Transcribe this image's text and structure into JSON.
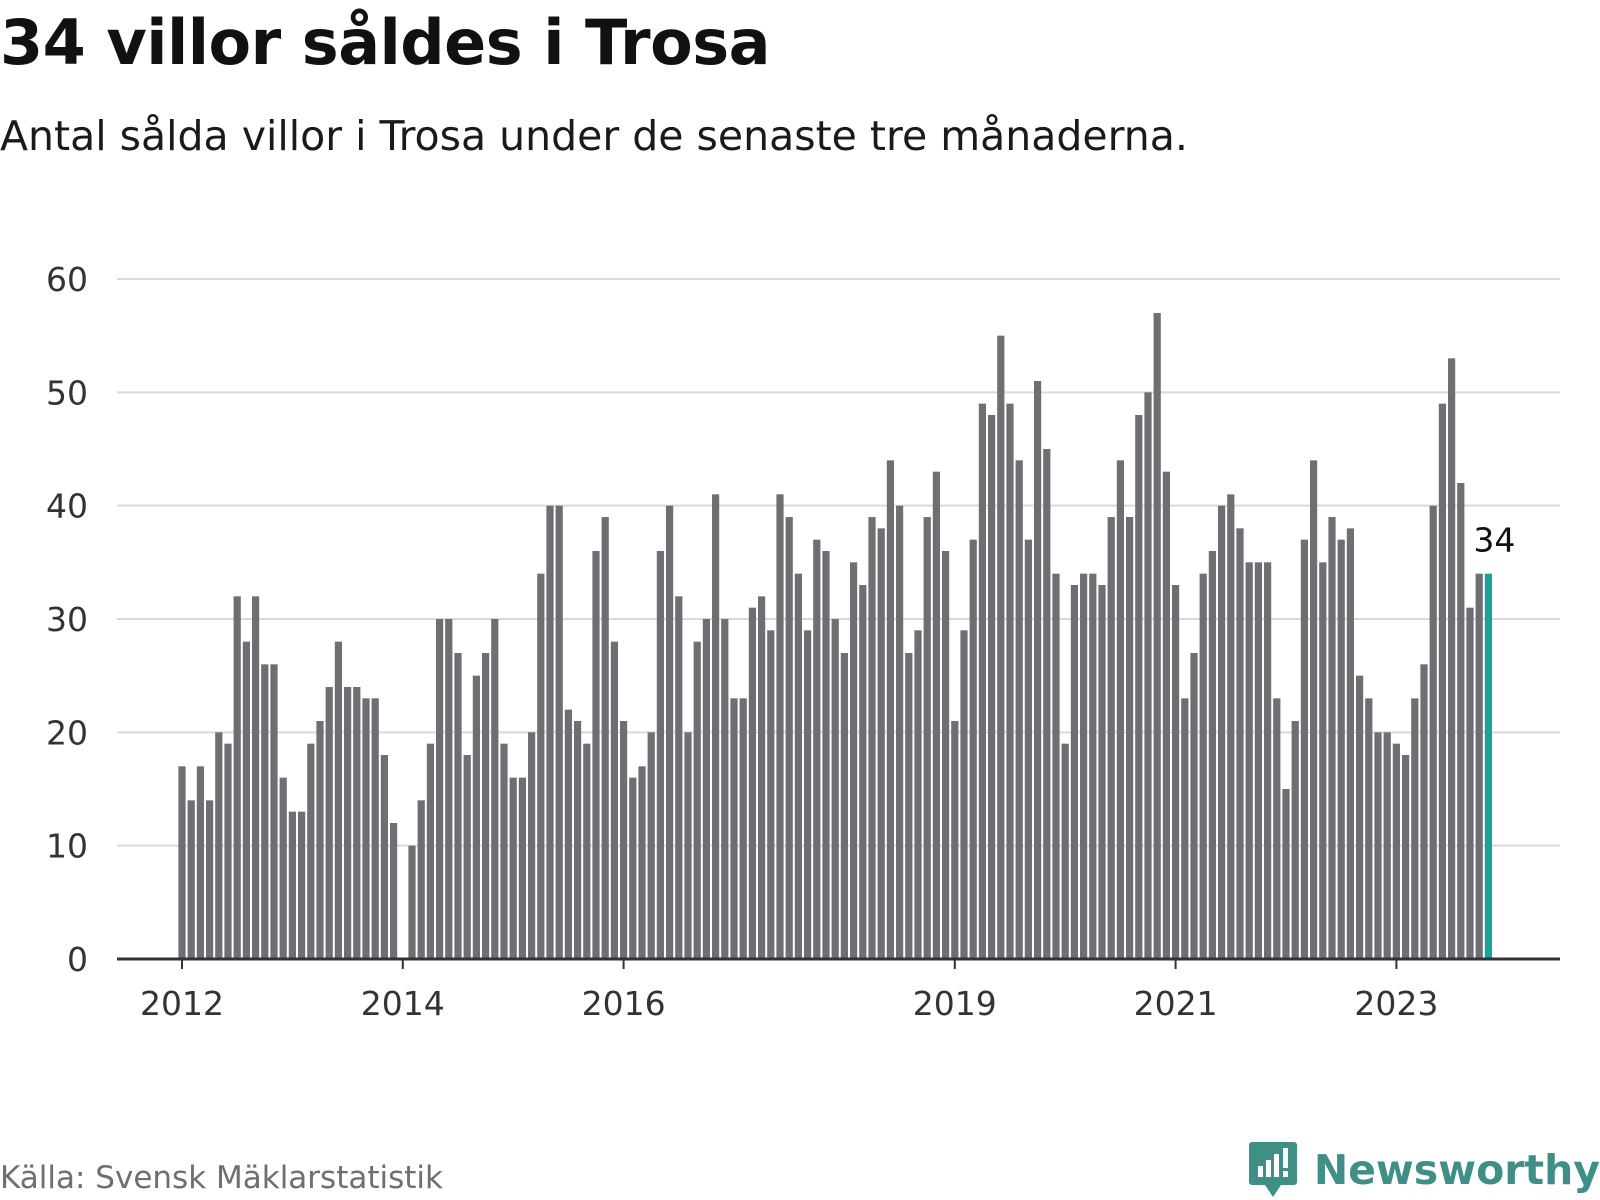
{
  "title": "34 villor såldes i Trosa",
  "subtitle": "Antal sålda villor i Trosa under de senaste tre månaderna.",
  "source": "Källa: Svensk Mäklarstatistik",
  "brand": "Newsworthy",
  "colors": {
    "bar": "#6e6e73",
    "highlight": "#17a59a",
    "grid": "#d9d9d9",
    "axis": "#333333",
    "brand": "#3f8f86"
  },
  "chart_data": {
    "type": "bar",
    "title": "34 villor såldes i Trosa",
    "xlabel": "",
    "ylabel": "",
    "ylim": [
      0,
      60
    ],
    "yticks": [
      0,
      10,
      20,
      30,
      40,
      50,
      60
    ],
    "xticks": [
      "2012",
      "2014",
      "2016",
      "2019",
      "2021",
      "2023"
    ],
    "xtick_index": [
      0,
      24,
      48,
      84,
      108,
      132
    ],
    "grid": true,
    "highlight_last": true,
    "last_value_label": "34",
    "values": [
      17,
      14,
      17,
      14,
      20,
      19,
      32,
      28,
      32,
      26,
      26,
      16,
      13,
      13,
      19,
      21,
      24,
      28,
      24,
      24,
      23,
      23,
      18,
      12,
      null,
      10,
      14,
      19,
      30,
      30,
      27,
      18,
      25,
      27,
      30,
      19,
      16,
      16,
      20,
      34,
      40,
      40,
      22,
      21,
      19,
      36,
      39,
      28,
      21,
      16,
      17,
      20,
      36,
      40,
      32,
      20,
      28,
      30,
      41,
      30,
      23,
      23,
      31,
      32,
      29,
      41,
      39,
      34,
      29,
      37,
      36,
      30,
      27,
      35,
      33,
      39,
      38,
      44,
      40,
      27,
      29,
      39,
      43,
      36,
      21,
      29,
      37,
      49,
      48,
      55,
      49,
      44,
      37,
      51,
      45,
      34,
      19,
      33,
      34,
      34,
      33,
      39,
      44,
      39,
      48,
      50,
      57,
      43,
      33,
      23,
      27,
      34,
      36,
      40,
      41,
      38,
      35,
      35,
      35,
      23,
      15,
      21,
      37,
      44,
      35,
      39,
      37,
      38,
      25,
      23,
      20,
      20,
      19,
      18,
      23,
      26,
      40,
      49,
      53,
      42,
      31,
      34,
      34
    ]
  }
}
